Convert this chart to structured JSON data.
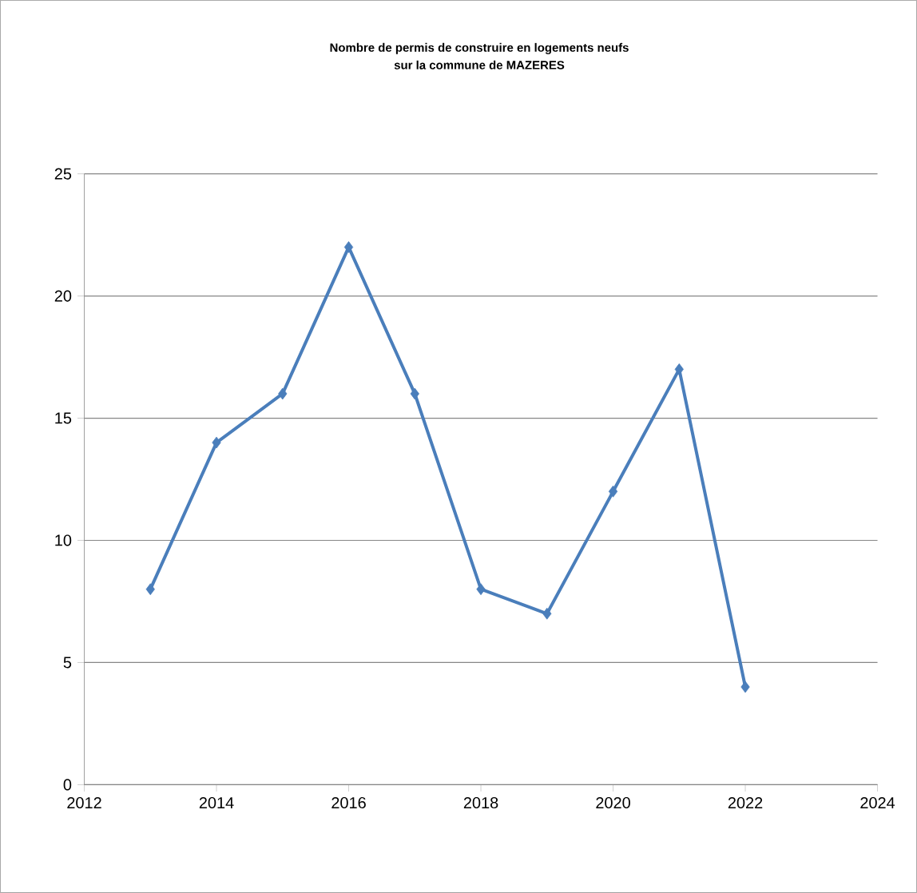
{
  "chart_data": {
    "type": "line",
    "title": "Nombre de permis de construire en logements neufs\nsur la commune de MAZERES",
    "x": [
      2013,
      2014,
      2015,
      2016,
      2017,
      2018,
      2019,
      2020,
      2021,
      2022
    ],
    "series": [
      {
        "color": "#4a7ebb",
        "values": [
          8,
          14,
          16,
          22,
          16,
          8,
          7,
          12,
          17,
          4
        ]
      }
    ],
    "xlim": [
      2012,
      2024
    ],
    "xticks": [
      2012,
      2014,
      2016,
      2018,
      2020,
      2022,
      2024
    ],
    "ylim": [
      0,
      25
    ],
    "yticks": [
      0,
      5,
      10,
      15,
      20,
      25
    ],
    "grid": "y",
    "marker": "diamond",
    "line_style": "solid"
  }
}
